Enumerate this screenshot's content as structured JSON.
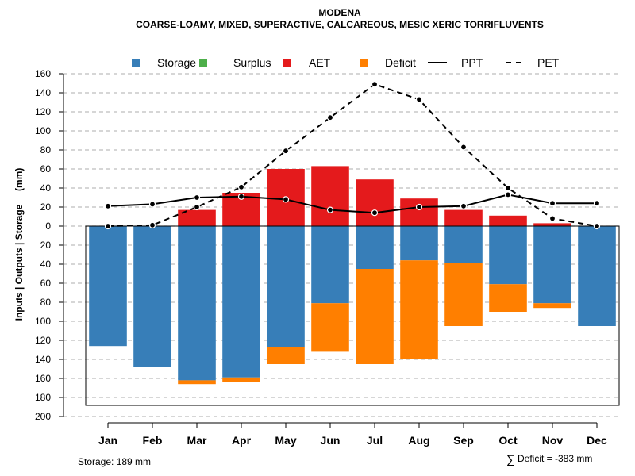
{
  "chart_data": {
    "type": "bar",
    "title": "MODENA",
    "subtitle": "COARSE-LOAMY, MIXED, SUPERACTIVE, CALCAREOUS, MESIC XERIC TORRIFLUVENTS",
    "ylabel": "Inputs | Outputs | Storage     (mm)",
    "ylim": [
      -200,
      160
    ],
    "yticks": [
      160,
      140,
      120,
      100,
      80,
      60,
      40,
      20,
      0,
      -20,
      -40,
      -60,
      -80,
      -100,
      -120,
      -140,
      -160,
      -180,
      -200
    ],
    "ytick_labels": [
      "160",
      "140",
      "120",
      "100",
      "80",
      "60",
      "40",
      "20",
      "0",
      "20",
      "40",
      "60",
      "80",
      "100",
      "120",
      "140",
      "160",
      "180",
      "200"
    ],
    "grid": true,
    "legend_position": "top",
    "categories": [
      "Jan",
      "Feb",
      "Mar",
      "Apr",
      "May",
      "Jun",
      "Jul",
      "Aug",
      "Sep",
      "Oct",
      "Nov",
      "Dec"
    ],
    "legend": [
      {
        "name": "Storage",
        "kind": "box",
        "color": "#377EB8"
      },
      {
        "name": "Surplus",
        "kind": "box",
        "color": "#4DAF4A"
      },
      {
        "name": "AET",
        "kind": "box",
        "color": "#E41A1C"
      },
      {
        "name": "Deficit",
        "kind": "box",
        "color": "#FF7F00"
      },
      {
        "name": "PPT",
        "kind": "solid",
        "color": "#000000"
      },
      {
        "name": "PET",
        "kind": "dashed",
        "color": "#000000"
      }
    ],
    "series": [
      {
        "name": "AET",
        "type": "bar-up",
        "color": "#E41A1C",
        "values": [
          0,
          0,
          17,
          35,
          60,
          63,
          49,
          29,
          17,
          11,
          3,
          0
        ]
      },
      {
        "name": "Storage",
        "type": "bar-down",
        "color": "#377EB8",
        "values": [
          126,
          148,
          162,
          159,
          127,
          81,
          45,
          36,
          39,
          61,
          81,
          105
        ]
      },
      {
        "name": "Deficit",
        "type": "bar-down-stacked",
        "color": "#FF7F00",
        "values": [
          0,
          0,
          4,
          5,
          18,
          51,
          100,
          104,
          66,
          29,
          5,
          0
        ]
      },
      {
        "name": "Surplus",
        "type": "bar-up",
        "color": "#4DAF4A",
        "values": [
          0,
          0,
          0,
          0,
          0,
          0,
          0,
          0,
          0,
          0,
          0,
          0
        ]
      },
      {
        "name": "PPT",
        "type": "line",
        "color": "#000000",
        "values": [
          21,
          23,
          30,
          31,
          28,
          17,
          14,
          20,
          21,
          33,
          24,
          24
        ]
      },
      {
        "name": "PET",
        "type": "dashed-line",
        "color": "#000000",
        "values": [
          0,
          1,
          20,
          41,
          79,
          114,
          149,
          133,
          83,
          40,
          8,
          0
        ]
      }
    ]
  },
  "footer": {
    "storage_note": "Storage: 189 mm",
    "deficit_symbol": "∑",
    "deficit_note": "Deficit = -383 mm"
  }
}
